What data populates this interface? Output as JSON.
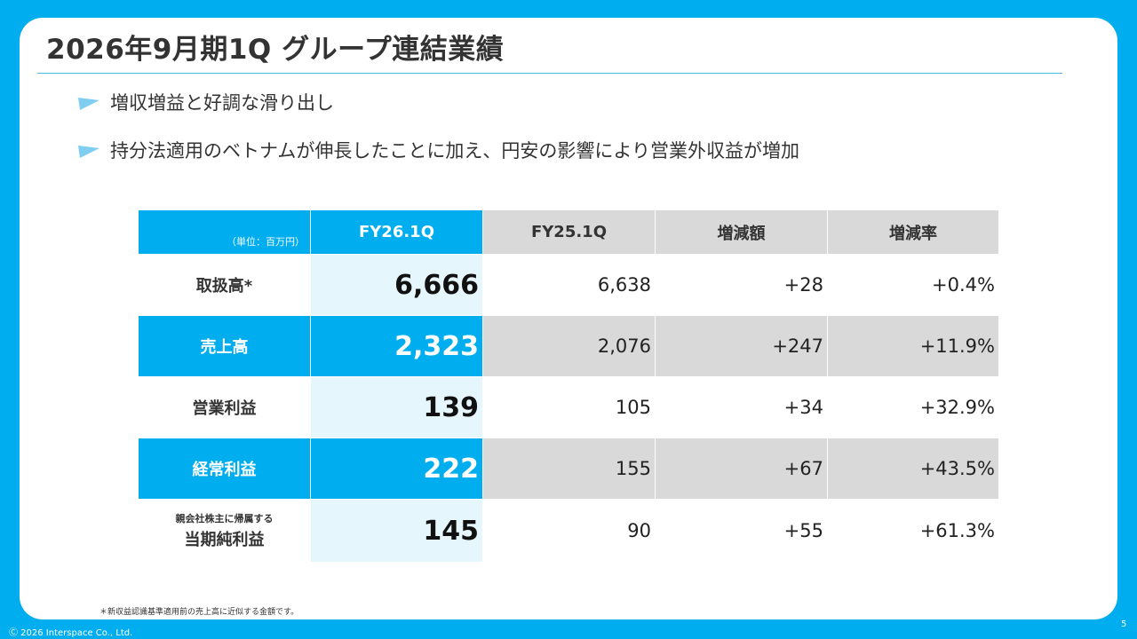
{
  "title": "2026年9月期1Q グループ連結業績",
  "bullets": [
    "増収増益と好調な滑り出し",
    "持分法適用のベトナムが伸長したことに加え、円安の影響により営業外収益が増加"
  ],
  "table": {
    "unit": "（単位：百万円）",
    "headers": [
      "FY26.1Q",
      "FY25.1Q",
      "増減額",
      "増減率"
    ],
    "rows": [
      {
        "label": "取扱高*",
        "cur": "6,666",
        "prev": "6,638",
        "diff": "+28",
        "rate": "+0.4%"
      },
      {
        "label": "売上高",
        "cur": "2,323",
        "prev": "2,076",
        "diff": "+247",
        "rate": "+11.9%"
      },
      {
        "label": "営業利益",
        "cur": "139",
        "prev": "105",
        "diff": "+34",
        "rate": "+32.9%"
      },
      {
        "label": "経常利益",
        "cur": "222",
        "prev": "155",
        "diff": "+67",
        "rate": "+43.5%"
      },
      {
        "label_small": "親会社株主に帰属する",
        "label": "当期純利益",
        "cur": "145",
        "prev": "90",
        "diff": "+55",
        "rate": "+61.3%"
      }
    ]
  },
  "footnote": "＊新収益認識基準適用前の売上高に近似する金額です。",
  "copyright": "Ⓒ 2026 Interspace Co., Ltd.",
  "page_number": "5",
  "colors": {
    "brand": "#00aeef",
    "gray": "#d9d9d9",
    "pale_blue": "#e6f6fd"
  }
}
